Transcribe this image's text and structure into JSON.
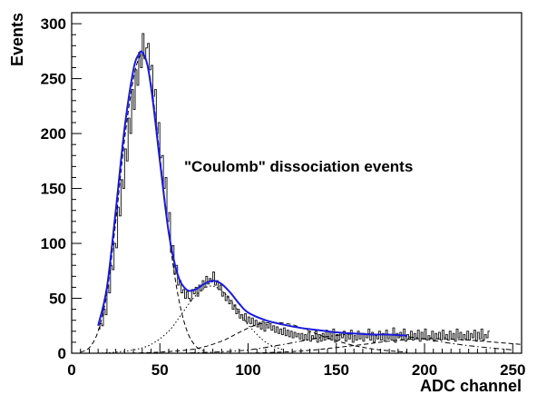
{
  "chart_data": {
    "type": "line",
    "title": "",
    "annotation": "\"Coulomb\" dissociation events",
    "xlabel": "ADC channel",
    "ylabel": "Events",
    "xlim": [
      0,
      255
    ],
    "ylim": [
      0,
      310
    ],
    "x_ticks": [
      "0",
      "50",
      "100",
      "150",
      "200",
      "250"
    ],
    "x_tick_values": [
      0,
      50,
      100,
      150,
      200,
      250
    ],
    "y_ticks": [
      "0",
      "50",
      "100",
      "150",
      "200",
      "250",
      "300"
    ],
    "y_tick_values": [
      0,
      50,
      100,
      150,
      200,
      250,
      300
    ],
    "grid": false,
    "histogram": {
      "bin_width": 1,
      "x_start": 15,
      "values": [
        22,
        27,
        25,
        40,
        35,
        62,
        55,
        80,
        76,
        100,
        96,
        133,
        125,
        158,
        150,
        186,
        175,
        214,
        200,
        240,
        222,
        258,
        244,
        274,
        260,
        291,
        268,
        278,
        282,
        258,
        262,
        234,
        240,
        200,
        210,
        178,
        180,
        150,
        160,
        120,
        128,
        92,
        98,
        72,
        80,
        62,
        66,
        55,
        58,
        50,
        56,
        50,
        48,
        58,
        54,
        60,
        52,
        62,
        57,
        66,
        60,
        70,
        63,
        68,
        65,
        74,
        62,
        66,
        58,
        62,
        52,
        55,
        48,
        52,
        45,
        48,
        40,
        44,
        36,
        40,
        32,
        35,
        30,
        36,
        28,
        33,
        27,
        32,
        25,
        30,
        24,
        28,
        22,
        29,
        20,
        26,
        23,
        27,
        21,
        25,
        19,
        24,
        18,
        22,
        17,
        23,
        16,
        21,
        15,
        20,
        14,
        19,
        15,
        18,
        13,
        18,
        12,
        17,
        12,
        19,
        11,
        16,
        13,
        20,
        10,
        17,
        11,
        18,
        12,
        21,
        13,
        19,
        12,
        22,
        10,
        17,
        12,
        19,
        14,
        20,
        11,
        18,
        13,
        21,
        10,
        16,
        12,
        20,
        13,
        18,
        11,
        17,
        14,
        22,
        12,
        19,
        10,
        16,
        13,
        20,
        12,
        18,
        11,
        21,
        13,
        17,
        12,
        23,
        10,
        18,
        14,
        19,
        12,
        22,
        11,
        17,
        13,
        20,
        12,
        18,
        14,
        21,
        11,
        19,
        13,
        22,
        12,
        16,
        14,
        20,
        11,
        18,
        13,
        19,
        12,
        21,
        14,
        17,
        12,
        20,
        13,
        18,
        11,
        22,
        14,
        19,
        12,
        17,
        13,
        20,
        12,
        18,
        14,
        21,
        11,
        19,
        13,
        22,
        12,
        17,
        14,
        20
      ]
    },
    "series": [
      {
        "color": "#1a1adb",
        "style": "solid",
        "x": [
          15,
          20,
          25,
          30,
          35,
          38,
          40,
          43,
          46,
          50,
          55,
          60,
          65,
          70,
          75,
          80,
          85,
          90,
          95,
          100,
          110,
          120,
          130,
          140,
          150,
          160,
          170,
          180,
          190
        ],
        "y": [
          25,
          60,
          130,
          205,
          258,
          272,
          274,
          262,
          230,
          175,
          110,
          72,
          58,
          58,
          63,
          66,
          63,
          55,
          45,
          37,
          30,
          26,
          23,
          21,
          19,
          18,
          17,
          17,
          16
        ]
      },
      {
        "color": "#000000",
        "style": "dashed",
        "x": [
          5,
          10,
          15,
          20,
          25,
          30,
          35,
          38,
          40,
          43,
          46,
          50,
          55,
          60,
          65,
          70,
          75
        ],
        "y": [
          1,
          5,
          20,
          55,
          120,
          195,
          250,
          268,
          272,
          262,
          235,
          180,
          110,
          55,
          22,
          7,
          2
        ]
      },
      {
        "color": "#000000",
        "style": "dotted",
        "x": [
          15,
          25,
          35,
          45,
          55,
          62,
          70,
          78,
          85,
          92,
          100,
          110,
          120
        ],
        "y": [
          0,
          1,
          3,
          8,
          20,
          35,
          52,
          61,
          57,
          44,
          26,
          10,
          3
        ]
      },
      {
        "color": "#000000",
        "style": "dashed",
        "x": [
          30,
          50,
          70,
          85,
          95,
          105,
          115,
          125,
          135,
          145,
          160,
          175,
          190
        ],
        "y": [
          0,
          1,
          4,
          11,
          19,
          26,
          28,
          26,
          20,
          14,
          7,
          3,
          1
        ]
      },
      {
        "color": "#000000",
        "style": "dashdot",
        "x": [
          60,
          80,
          100,
          120,
          140,
          155,
          165,
          175,
          185,
          200,
          215,
          230,
          250
        ],
        "y": [
          0,
          1,
          3,
          8,
          14,
          17,
          18,
          17,
          16,
          13,
          9,
          6,
          3
        ]
      },
      {
        "color": "#000000",
        "style": "dashed",
        "x": [
          100,
          130,
          160,
          180,
          195,
          210,
          225,
          240,
          255
        ],
        "y": [
          0,
          2,
          7,
          11,
          13,
          13,
          12,
          10,
          8
        ]
      }
    ]
  }
}
